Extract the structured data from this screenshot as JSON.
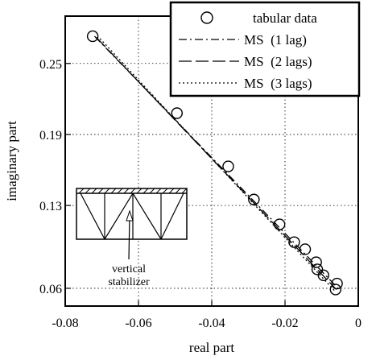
{
  "chart_data": {
    "type": "scatter",
    "xlabel": "real part",
    "ylabel": "imaginary part",
    "xlim": [
      -0.08,
      0.0
    ],
    "ylim": [
      0.045,
      0.29
    ],
    "xticks": [
      -0.08,
      -0.06,
      -0.04,
      -0.02,
      0
    ],
    "xtick_labels": [
      "-0.08",
      "-0.06",
      "-0.04",
      "-0.02",
      "0"
    ],
    "yticks": [
      0.06,
      0.13,
      0.19,
      0.25
    ],
    "ytick_labels": [
      "0.06",
      "0.13",
      "0.19",
      "0.25"
    ],
    "grid": true,
    "legend_position": "top-right",
    "series": [
      {
        "name": "tabular data",
        "style": "circle-markers",
        "points": [
          [
            -0.0725,
            0.273
          ],
          [
            -0.0495,
            0.208
          ],
          [
            -0.0355,
            0.163
          ],
          [
            -0.0285,
            0.135
          ],
          [
            -0.0215,
            0.114
          ],
          [
            -0.0175,
            0.099
          ],
          [
            -0.0145,
            0.093
          ],
          [
            -0.0115,
            0.082
          ],
          [
            -0.0112,
            0.076
          ],
          [
            -0.0095,
            0.071
          ],
          [
            -0.0058,
            0.064
          ],
          [
            -0.0062,
            0.059
          ]
        ]
      },
      {
        "name": "MS  (1 lag)",
        "style": "dash-dot",
        "points": [
          [
            -0.072,
            0.273
          ],
          [
            -0.0055,
            0.06
          ]
        ]
      },
      {
        "name": "MS  (2 lags)",
        "style": "long-dash",
        "points": [
          [
            -0.0715,
            0.272
          ],
          [
            -0.006,
            0.059
          ]
        ]
      },
      {
        "name": "MS  (3 lags)",
        "style": "dotted",
        "points": [
          [
            -0.0705,
            0.271
          ],
          [
            -0.0065,
            0.058
          ]
        ]
      }
    ],
    "annotations": [
      {
        "text_lines": [
          "vertical",
          "stabilizer"
        ]
      }
    ]
  }
}
